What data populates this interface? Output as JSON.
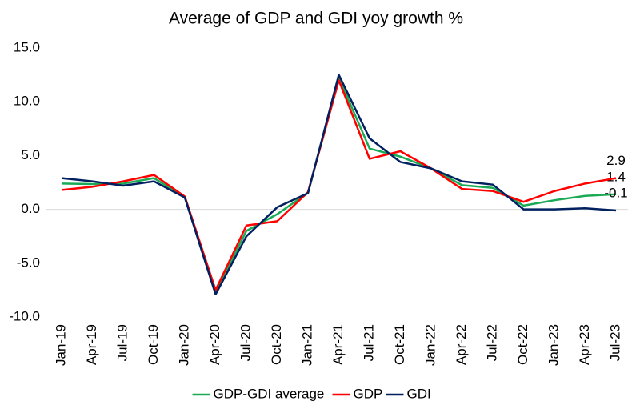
{
  "chart_data": {
    "type": "line",
    "title": "Average of GDP and GDI yoy growth %",
    "categories": [
      "Jan-19",
      "Apr-19",
      "Jul-19",
      "Oct-19",
      "Jan-20",
      "Apr-20",
      "Jul-20",
      "Oct-20",
      "Jan-21",
      "Apr-21",
      "Jul-21",
      "Oct-21",
      "Jan-22",
      "Apr-22",
      "Jul-22",
      "Oct-22",
      "Jan-23",
      "Apr-23",
      "Jul-23"
    ],
    "series": [
      {
        "name": "GDP-GDI average",
        "color": "#1aaa55",
        "values": [
          2.4,
          2.35,
          2.4,
          2.9,
          1.15,
          -7.7,
          -2.0,
          -0.45,
          1.55,
          12.25,
          5.65,
          4.9,
          3.8,
          2.25,
          2.0,
          0.35,
          0.85,
          1.25,
          1.4
        ]
      },
      {
        "name": "GDP",
        "color": "#ff0000",
        "values": [
          1.8,
          2.1,
          2.6,
          3.2,
          1.2,
          -7.5,
          -1.5,
          -1.1,
          1.6,
          12.0,
          4.7,
          5.4,
          3.8,
          1.9,
          1.7,
          0.7,
          1.7,
          2.4,
          2.9
        ]
      },
      {
        "name": "GDI",
        "color": "#002060",
        "values": [
          2.9,
          2.6,
          2.2,
          2.6,
          1.1,
          -7.9,
          -2.5,
          0.2,
          1.5,
          12.5,
          6.6,
          4.4,
          3.8,
          2.6,
          2.3,
          0.0,
          0.0,
          0.1,
          -0.1
        ]
      }
    ],
    "ylim": [
      -10,
      15
    ],
    "yticks": [
      {
        "value": -10,
        "label": "-10.0"
      },
      {
        "value": -5,
        "label": "-5.0"
      },
      {
        "value": 0,
        "label": "0.0"
      },
      {
        "value": 5,
        "label": "5.0"
      },
      {
        "value": 10,
        "label": "10.0"
      },
      {
        "value": 15,
        "label": "15.0"
      }
    ],
    "grid": false,
    "legend": "bottom"
  }
}
